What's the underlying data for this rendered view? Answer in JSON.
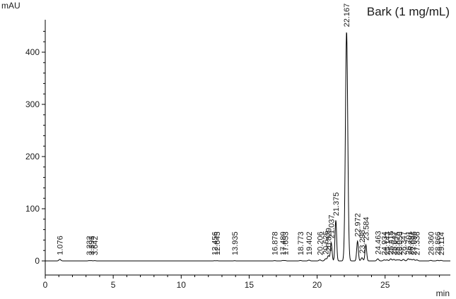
{
  "chart_data": {
    "type": "line",
    "title": "Bark (1 mg/mL)",
    "ylabel": "mAU",
    "xlabel": "min",
    "xlim": [
      0,
      29.8
    ],
    "ylim": [
      -6,
      450
    ],
    "x_ticks": [
      0,
      5,
      10,
      15,
      20,
      25
    ],
    "y_ticks": [
      0,
      100,
      200,
      300,
      400
    ],
    "grid": false,
    "series": [
      {
        "peaks": [
          {
            "rt": 1.076,
            "label": "1.076",
            "height": 3
          },
          {
            "rt": 3.232,
            "label": "3.232",
            "height": 0.5
          },
          {
            "rt": 3.393,
            "label": "3.393",
            "height": 0.5
          },
          {
            "rt": 3.642,
            "label": "3.642",
            "height": 0.5
          },
          {
            "rt": 12.456,
            "label": "12.456",
            "height": 0.3
          },
          {
            "rt": 12.645,
            "label": "12.645",
            "height": 0.3
          },
          {
            "rt": 13.935,
            "label": "13.935",
            "height": 0.3
          },
          {
            "rt": 16.878,
            "label": "16.878",
            "height": 0.5
          },
          {
            "rt": 17.48,
            "label": "17.480",
            "height": 0.8
          },
          {
            "rt": 17.653,
            "label": "17.653",
            "height": 0.6
          },
          {
            "rt": 18.773,
            "label": "18.773",
            "height": 0.8
          },
          {
            "rt": 19.402,
            "label": "19.402",
            "height": 1.5
          },
          {
            "rt": 20.206,
            "label": "20.206",
            "height": 2
          },
          {
            "rt": 20.625,
            "label": "20.625",
            "height": 4
          },
          {
            "rt": 20.829,
            "label": "20.829",
            "height": 10
          },
          {
            "rt": 21.037,
            "label": "21.037",
            "height": 35
          },
          {
            "rt": 21.375,
            "label": "21.375",
            "height": 78
          },
          {
            "rt": 22.167,
            "label": "22.167",
            "height": 440
          },
          {
            "rt": 22.972,
            "label": "22.972",
            "height": 38
          },
          {
            "rt": 23.298,
            "label": "23.298",
            "height": 6
          },
          {
            "rt": 23.584,
            "label": "23.584",
            "height": 31
          },
          {
            "rt": 24.463,
            "label": "24.463",
            "height": 4
          },
          {
            "rt": 24.934,
            "label": "24.934",
            "height": 2
          },
          {
            "rt": 25.143,
            "label": "25.143",
            "height": 2
          },
          {
            "rt": 25.415,
            "label": "25.415",
            "height": 4
          },
          {
            "rt": 25.647,
            "label": "25.647",
            "height": 3
          },
          {
            "rt": 25.875,
            "label": "25.875",
            "height": 2
          },
          {
            "rt": 26.05,
            "label": "26.050",
            "height": 2
          },
          {
            "rt": 26.347,
            "label": "26.347",
            "height": 3
          },
          {
            "rt": 26.701,
            "label": "26.701",
            "height": 4
          },
          {
            "rt": 26.891,
            "label": "26.891",
            "height": 3
          },
          {
            "rt": 27.096,
            "label": "27.096",
            "height": 3
          },
          {
            "rt": 27.336,
            "label": "27.336",
            "height": 2
          },
          {
            "rt": 28.36,
            "label": "28.360",
            "height": 1
          },
          {
            "rt": 28.866,
            "label": "28.866",
            "height": 1
          },
          {
            "rt": 29.114,
            "label": "29.114",
            "height": 1
          }
        ]
      }
    ],
    "colors": {
      "trace": "#000000",
      "axis": "#000000",
      "text": "#1a1a1a"
    }
  }
}
